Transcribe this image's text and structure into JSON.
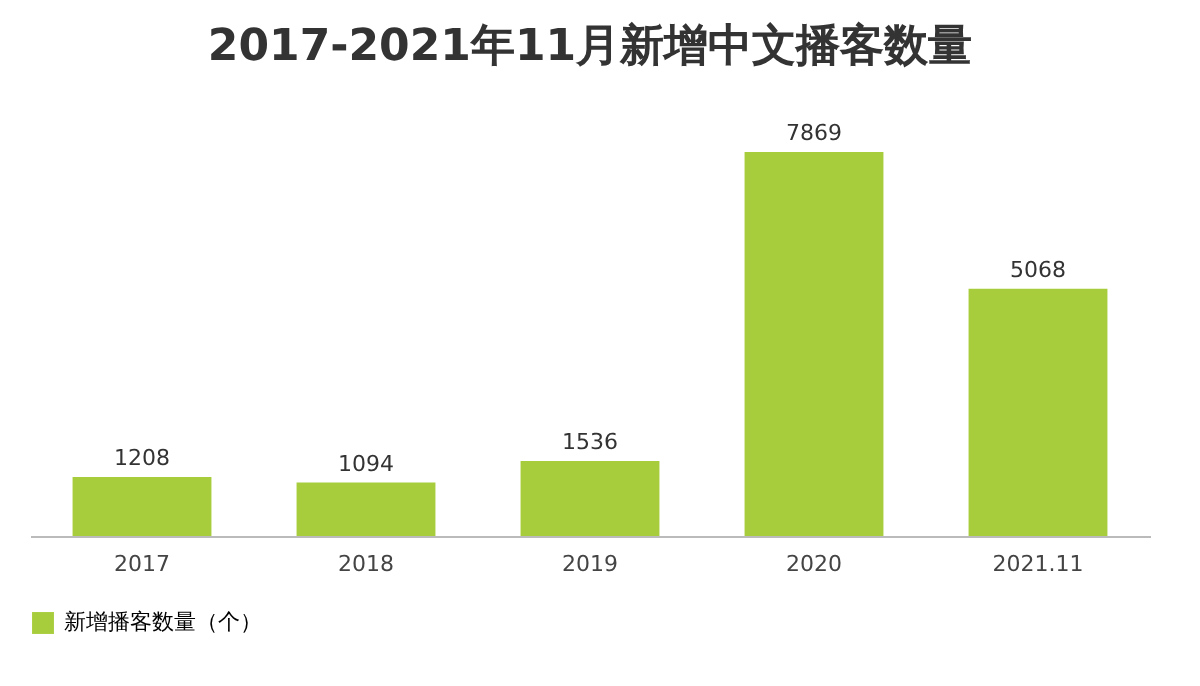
{
  "chart_data": {
    "type": "bar",
    "title": "2017-2021年11月新增中文播客数量",
    "categories": [
      "2017",
      "2018",
      "2019",
      "2020",
      "2021.11"
    ],
    "series": [
      {
        "name": "新增播客数量（个）",
        "color": "#a8cd3c",
        "values": [
          1208,
          1094,
          1536,
          7869,
          5068
        ]
      }
    ],
    "data_labels": true,
    "legend": "bottom",
    "grid": false
  }
}
